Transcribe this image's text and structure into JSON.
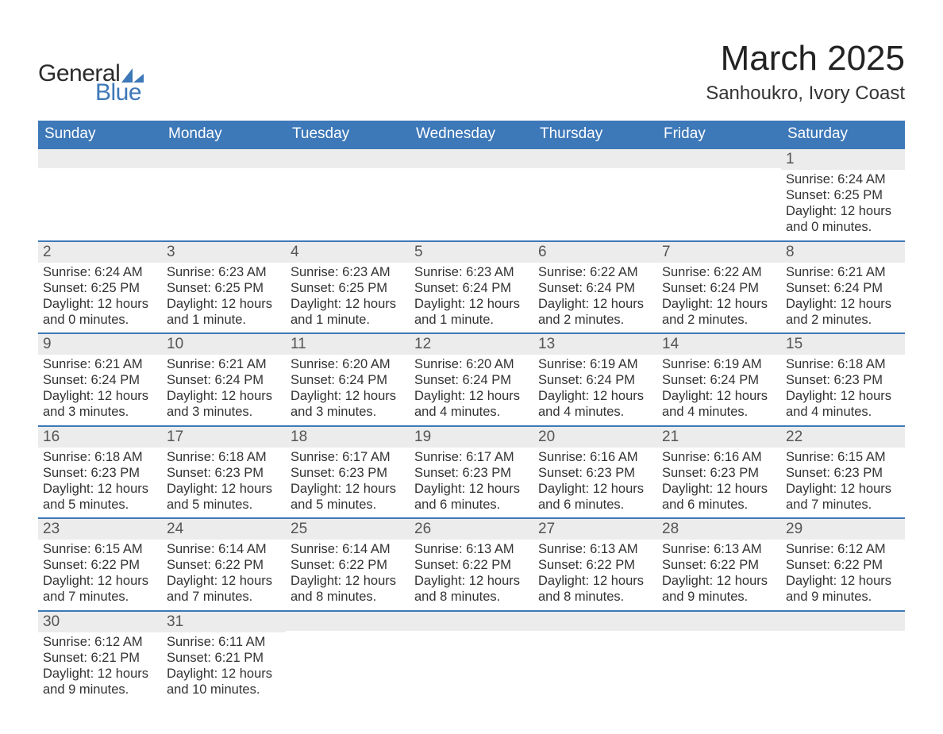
{
  "logo": {
    "word1": "General",
    "word2": "Blue",
    "text_color": "#2b2b2b",
    "accent_color": "#3d78b8"
  },
  "header": {
    "title": "March 2025",
    "location": "Sanhoukro, Ivory Coast",
    "title_fontsize": 44,
    "location_fontsize": 24
  },
  "colors": {
    "header_bg": "#3d78b8",
    "header_text": "#ffffff",
    "daynum_bg": "#ececec",
    "daynum_text": "#555555",
    "body_text": "#333333",
    "row_border": "#3d78b8",
    "page_bg": "#ffffff"
  },
  "typography": {
    "dayhead_fontsize": 19,
    "daynum_fontsize": 19,
    "body_fontsize": 16.5
  },
  "calendar": {
    "type": "table",
    "columns": [
      "Sunday",
      "Monday",
      "Tuesday",
      "Wednesday",
      "Thursday",
      "Friday",
      "Saturday"
    ],
    "weeks": [
      [
        {
          "day": "",
          "sunrise": "",
          "sunset": "",
          "daylight": ""
        },
        {
          "day": "",
          "sunrise": "",
          "sunset": "",
          "daylight": ""
        },
        {
          "day": "",
          "sunrise": "",
          "sunset": "",
          "daylight": ""
        },
        {
          "day": "",
          "sunrise": "",
          "sunset": "",
          "daylight": ""
        },
        {
          "day": "",
          "sunrise": "",
          "sunset": "",
          "daylight": ""
        },
        {
          "day": "",
          "sunrise": "",
          "sunset": "",
          "daylight": ""
        },
        {
          "day": "1",
          "sunrise": "Sunrise: 6:24 AM",
          "sunset": "Sunset: 6:25 PM",
          "daylight": "Daylight: 12 hours and 0 minutes."
        }
      ],
      [
        {
          "day": "2",
          "sunrise": "Sunrise: 6:24 AM",
          "sunset": "Sunset: 6:25 PM",
          "daylight": "Daylight: 12 hours and 0 minutes."
        },
        {
          "day": "3",
          "sunrise": "Sunrise: 6:23 AM",
          "sunset": "Sunset: 6:25 PM",
          "daylight": "Daylight: 12 hours and 1 minute."
        },
        {
          "day": "4",
          "sunrise": "Sunrise: 6:23 AM",
          "sunset": "Sunset: 6:25 PM",
          "daylight": "Daylight: 12 hours and 1 minute."
        },
        {
          "day": "5",
          "sunrise": "Sunrise: 6:23 AM",
          "sunset": "Sunset: 6:24 PM",
          "daylight": "Daylight: 12 hours and 1 minute."
        },
        {
          "day": "6",
          "sunrise": "Sunrise: 6:22 AM",
          "sunset": "Sunset: 6:24 PM",
          "daylight": "Daylight: 12 hours and 2 minutes."
        },
        {
          "day": "7",
          "sunrise": "Sunrise: 6:22 AM",
          "sunset": "Sunset: 6:24 PM",
          "daylight": "Daylight: 12 hours and 2 minutes."
        },
        {
          "day": "8",
          "sunrise": "Sunrise: 6:21 AM",
          "sunset": "Sunset: 6:24 PM",
          "daylight": "Daylight: 12 hours and 2 minutes."
        }
      ],
      [
        {
          "day": "9",
          "sunrise": "Sunrise: 6:21 AM",
          "sunset": "Sunset: 6:24 PM",
          "daylight": "Daylight: 12 hours and 3 minutes."
        },
        {
          "day": "10",
          "sunrise": "Sunrise: 6:21 AM",
          "sunset": "Sunset: 6:24 PM",
          "daylight": "Daylight: 12 hours and 3 minutes."
        },
        {
          "day": "11",
          "sunrise": "Sunrise: 6:20 AM",
          "sunset": "Sunset: 6:24 PM",
          "daylight": "Daylight: 12 hours and 3 minutes."
        },
        {
          "day": "12",
          "sunrise": "Sunrise: 6:20 AM",
          "sunset": "Sunset: 6:24 PM",
          "daylight": "Daylight: 12 hours and 4 minutes."
        },
        {
          "day": "13",
          "sunrise": "Sunrise: 6:19 AM",
          "sunset": "Sunset: 6:24 PM",
          "daylight": "Daylight: 12 hours and 4 minutes."
        },
        {
          "day": "14",
          "sunrise": "Sunrise: 6:19 AM",
          "sunset": "Sunset: 6:24 PM",
          "daylight": "Daylight: 12 hours and 4 minutes."
        },
        {
          "day": "15",
          "sunrise": "Sunrise: 6:18 AM",
          "sunset": "Sunset: 6:23 PM",
          "daylight": "Daylight: 12 hours and 4 minutes."
        }
      ],
      [
        {
          "day": "16",
          "sunrise": "Sunrise: 6:18 AM",
          "sunset": "Sunset: 6:23 PM",
          "daylight": "Daylight: 12 hours and 5 minutes."
        },
        {
          "day": "17",
          "sunrise": "Sunrise: 6:18 AM",
          "sunset": "Sunset: 6:23 PM",
          "daylight": "Daylight: 12 hours and 5 minutes."
        },
        {
          "day": "18",
          "sunrise": "Sunrise: 6:17 AM",
          "sunset": "Sunset: 6:23 PM",
          "daylight": "Daylight: 12 hours and 5 minutes."
        },
        {
          "day": "19",
          "sunrise": "Sunrise: 6:17 AM",
          "sunset": "Sunset: 6:23 PM",
          "daylight": "Daylight: 12 hours and 6 minutes."
        },
        {
          "day": "20",
          "sunrise": "Sunrise: 6:16 AM",
          "sunset": "Sunset: 6:23 PM",
          "daylight": "Daylight: 12 hours and 6 minutes."
        },
        {
          "day": "21",
          "sunrise": "Sunrise: 6:16 AM",
          "sunset": "Sunset: 6:23 PM",
          "daylight": "Daylight: 12 hours and 6 minutes."
        },
        {
          "day": "22",
          "sunrise": "Sunrise: 6:15 AM",
          "sunset": "Sunset: 6:23 PM",
          "daylight": "Daylight: 12 hours and 7 minutes."
        }
      ],
      [
        {
          "day": "23",
          "sunrise": "Sunrise: 6:15 AM",
          "sunset": "Sunset: 6:22 PM",
          "daylight": "Daylight: 12 hours and 7 minutes."
        },
        {
          "day": "24",
          "sunrise": "Sunrise: 6:14 AM",
          "sunset": "Sunset: 6:22 PM",
          "daylight": "Daylight: 12 hours and 7 minutes."
        },
        {
          "day": "25",
          "sunrise": "Sunrise: 6:14 AM",
          "sunset": "Sunset: 6:22 PM",
          "daylight": "Daylight: 12 hours and 8 minutes."
        },
        {
          "day": "26",
          "sunrise": "Sunrise: 6:13 AM",
          "sunset": "Sunset: 6:22 PM",
          "daylight": "Daylight: 12 hours and 8 minutes."
        },
        {
          "day": "27",
          "sunrise": "Sunrise: 6:13 AM",
          "sunset": "Sunset: 6:22 PM",
          "daylight": "Daylight: 12 hours and 8 minutes."
        },
        {
          "day": "28",
          "sunrise": "Sunrise: 6:13 AM",
          "sunset": "Sunset: 6:22 PM",
          "daylight": "Daylight: 12 hours and 9 minutes."
        },
        {
          "day": "29",
          "sunrise": "Sunrise: 6:12 AM",
          "sunset": "Sunset: 6:22 PM",
          "daylight": "Daylight: 12 hours and 9 minutes."
        }
      ],
      [
        {
          "day": "30",
          "sunrise": "Sunrise: 6:12 AM",
          "sunset": "Sunset: 6:21 PM",
          "daylight": "Daylight: 12 hours and 9 minutes."
        },
        {
          "day": "31",
          "sunrise": "Sunrise: 6:11 AM",
          "sunset": "Sunset: 6:21 PM",
          "daylight": "Daylight: 12 hours and 10 minutes."
        },
        {
          "day": "",
          "sunrise": "",
          "sunset": "",
          "daylight": ""
        },
        {
          "day": "",
          "sunrise": "",
          "sunset": "",
          "daylight": ""
        },
        {
          "day": "",
          "sunrise": "",
          "sunset": "",
          "daylight": ""
        },
        {
          "day": "",
          "sunrise": "",
          "sunset": "",
          "daylight": ""
        },
        {
          "day": "",
          "sunrise": "",
          "sunset": "",
          "daylight": ""
        }
      ]
    ]
  }
}
